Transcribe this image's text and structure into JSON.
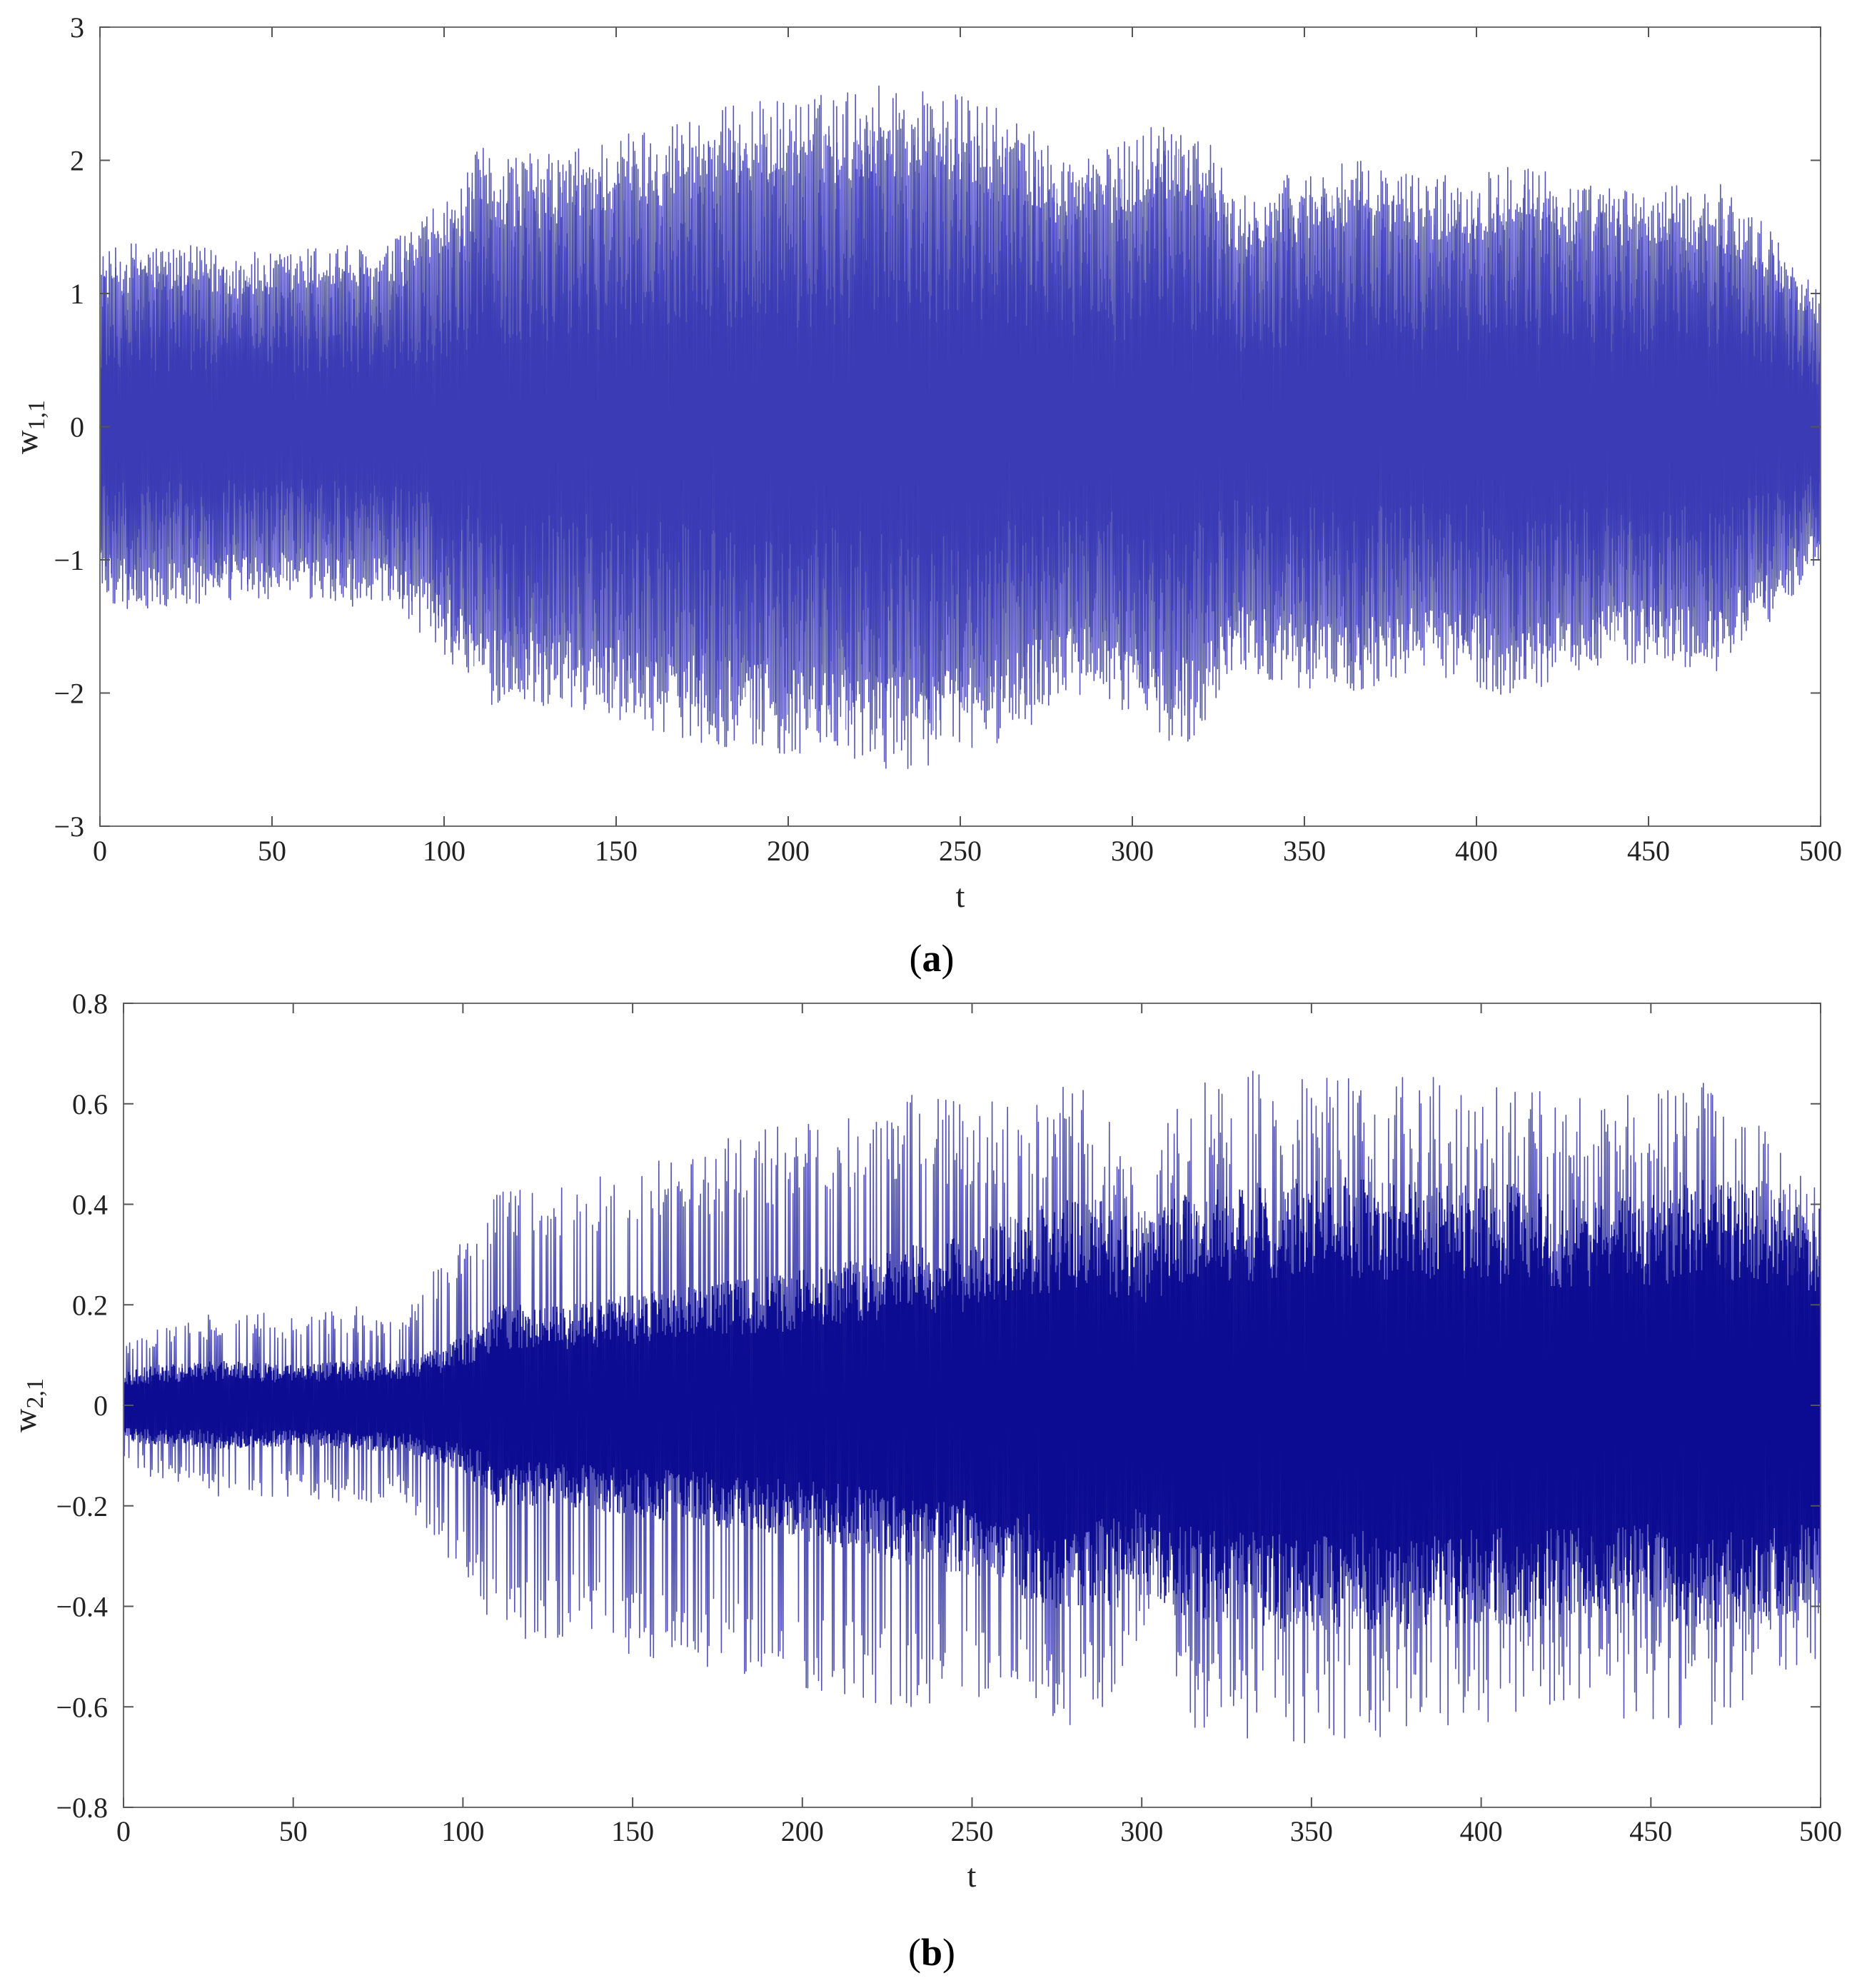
{
  "chart_data": [
    {
      "type": "line",
      "panel_label": "a",
      "xlabel": "t",
      "ylabel_base": "w",
      "ylabel_sub": "1,1",
      "xlim": [
        0,
        500
      ],
      "ylim": [
        -3,
        3
      ],
      "xticks": [
        "0",
        "50",
        "100",
        "150",
        "200",
        "250",
        "300",
        "350",
        "400",
        "450",
        "500"
      ],
      "yticks": [
        "3",
        "2",
        "1",
        "0",
        "−1",
        "−2",
        "−3"
      ],
      "line_color": "#1f1fa0",
      "envelope": {
        "t": [
          0,
          10,
          30,
          50,
          70,
          80,
          95,
          105,
          110,
          130,
          150,
          170,
          190,
          210,
          230,
          250,
          265,
          280,
          295,
          305,
          315,
          322,
          330,
          345,
          365,
          385,
          400,
          412,
          425,
          440,
          455,
          470,
          485,
          500
        ],
        "upper": [
          1.3,
          1.4,
          1.35,
          1.3,
          1.4,
          1.3,
          1.6,
          1.8,
          2.1,
          2.05,
          2.2,
          2.35,
          2.45,
          2.5,
          2.6,
          2.5,
          2.35,
          2.05,
          2.1,
          2.3,
          2.35,
          2.2,
          1.7,
          1.9,
          2.0,
          1.9,
          1.9,
          2.1,
          1.85,
          1.8,
          1.8,
          1.85,
          1.5,
          1.0
        ],
        "lower": [
          -1.3,
          -1.4,
          -1.35,
          -1.3,
          -1.35,
          -1.35,
          -1.6,
          -1.85,
          -2.1,
          -2.1,
          -2.2,
          -2.35,
          -2.45,
          -2.5,
          -2.6,
          -2.5,
          -2.35,
          -2.05,
          -2.1,
          -2.3,
          -2.4,
          -2.2,
          -1.8,
          -1.95,
          -2.0,
          -1.85,
          -1.95,
          -2.1,
          -1.85,
          -1.8,
          -1.8,
          -1.85,
          -1.5,
          -1.0
        ]
      }
    },
    {
      "type": "line",
      "panel_label": "b",
      "xlabel": "t",
      "ylabel_base": "w",
      "ylabel_sub": "2,1",
      "xlim": [
        0,
        500
      ],
      "ylim": [
        -0.8,
        0.8
      ],
      "xticks": [
        "0",
        "50",
        "100",
        "150",
        "200",
        "250",
        "300",
        "350",
        "400",
        "450",
        "500"
      ],
      "yticks": [
        "0.8",
        "0.6",
        "0.4",
        "0.2",
        "0",
        "−0.2",
        "−0.4",
        "−0.6",
        "−0.8"
      ],
      "line_color": "#0a0a96",
      "envelope": {
        "t": [
          0,
          10,
          30,
          50,
          70,
          80,
          95,
          105,
          110,
          130,
          150,
          170,
          190,
          210,
          230,
          250,
          270,
          285,
          295,
          302,
          310,
          330,
          350,
          370,
          390,
          410,
          430,
          450,
          465,
          480,
          500
        ],
        "upper": [
          0.12,
          0.15,
          0.19,
          0.18,
          0.2,
          0.18,
          0.3,
          0.36,
          0.46,
          0.44,
          0.48,
          0.52,
          0.55,
          0.58,
          0.62,
          0.6,
          0.62,
          0.65,
          0.52,
          0.42,
          0.64,
          0.67,
          0.68,
          0.66,
          0.66,
          0.64,
          0.62,
          0.63,
          0.65,
          0.58,
          0.5
        ],
        "lower": [
          -0.12,
          -0.15,
          -0.19,
          -0.18,
          -0.2,
          -0.18,
          -0.3,
          -0.38,
          -0.48,
          -0.46,
          -0.5,
          -0.52,
          -0.55,
          -0.58,
          -0.6,
          -0.6,
          -0.62,
          -0.65,
          -0.52,
          -0.42,
          -0.66,
          -0.67,
          -0.68,
          -0.66,
          -0.64,
          -0.64,
          -0.62,
          -0.63,
          -0.65,
          -0.58,
          -0.5
        ],
        "core_upper": [
          0.07,
          0.08,
          0.09,
          0.08,
          0.09,
          0.09,
          0.12,
          0.16,
          0.2,
          0.2,
          0.22,
          0.24,
          0.26,
          0.28,
          0.32,
          0.34,
          0.4,
          0.42,
          0.38,
          0.36,
          0.42,
          0.44,
          0.46,
          0.45,
          0.44,
          0.44,
          0.42,
          0.43,
          0.45,
          0.44,
          0.4
        ],
        "core_lower": [
          -0.07,
          -0.08,
          -0.09,
          -0.08,
          -0.09,
          -0.09,
          -0.12,
          -0.16,
          -0.2,
          -0.2,
          -0.22,
          -0.24,
          -0.26,
          -0.28,
          -0.32,
          -0.34,
          -0.4,
          -0.42,
          -0.38,
          -0.36,
          -0.42,
          -0.44,
          -0.46,
          -0.45,
          -0.44,
          -0.44,
          -0.42,
          -0.43,
          -0.45,
          -0.44,
          -0.4
        ]
      }
    }
  ]
}
